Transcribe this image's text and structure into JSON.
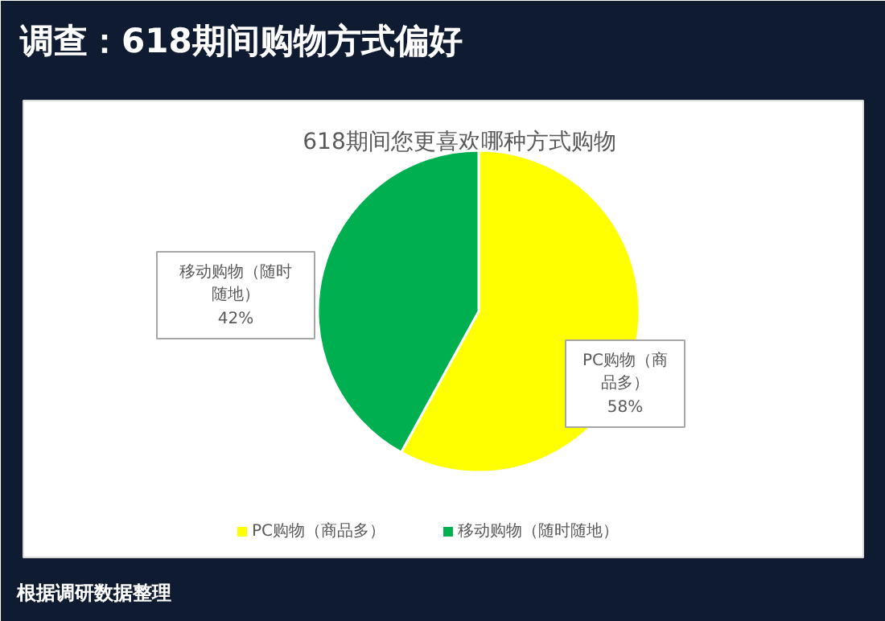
{
  "chart_data": {
    "type": "pie",
    "title": "调查：618期间购物方式偏好",
    "subtitle": "618期间您更喜欢哪种方式购物",
    "categories": [
      "PC购物（商品多）",
      "移动购物（随时随地）"
    ],
    "values": [
      58,
      42
    ],
    "colors": [
      "#ffff00",
      "#00b050"
    ],
    "value_labels": [
      "58%",
      "42%"
    ],
    "legend": "bottom",
    "annotations": [
      "根据调研数据整理"
    ]
  }
}
